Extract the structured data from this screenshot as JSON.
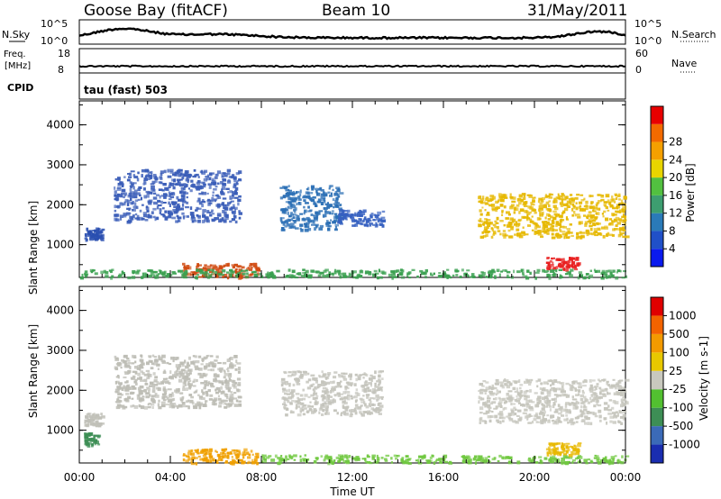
{
  "header": {
    "station": "Goose Bay (fitACF)",
    "beam": "Beam 10",
    "date": "31/May/2011"
  },
  "strip_nsky": {
    "left_label": "N.Sky",
    "ticks_left": [
      "10^5",
      "10^0"
    ],
    "right_label": "N.Search",
    "ticks_right": [
      "10^5",
      "10^0"
    ]
  },
  "strip_freq": {
    "left_label_1": "Freq.",
    "left_label_2": "[MHz]",
    "ticks_left": [
      "18",
      "8"
    ],
    "right_label": "Nave",
    "ticks_right": [
      "60",
      "0"
    ]
  },
  "cpid": {
    "label": "CPID",
    "value": "tau (fast) 503"
  },
  "chart_data": [
    {
      "type": "heatmap",
      "name": "power",
      "ylabel": "Slant Range [km]",
      "yticks": [
        1000,
        2000,
        3000,
        4000
      ],
      "ylim": [
        180,
        4600
      ],
      "xlim": [
        0,
        24
      ],
      "colorbar": {
        "label": "Power [dB]",
        "ticks": [
          "4",
          "8",
          "12",
          "16",
          "20",
          "24",
          "28"
        ],
        "colors": [
          "#0a1aee",
          "#2050c8",
          "#2a7ab8",
          "#3d9e70",
          "#52c040",
          "#e8d500",
          "#f5a000",
          "#f36a00",
          "#e80000"
        ]
      },
      "scatter_regions": [
        {
          "t0": 0.2,
          "t1": 1.0,
          "r0": 1150,
          "r1": 1450,
          "color": "#2a4fb0"
        },
        {
          "t0": 1.5,
          "t1": 7.0,
          "r0": 1600,
          "r1": 2900,
          "color": "#3a5db8"
        },
        {
          "t0": 8.8,
          "t1": 11.5,
          "r0": 1400,
          "r1": 2500,
          "color": "#2b6fb5"
        },
        {
          "t0": 11.3,
          "t1": 13.3,
          "r0": 1500,
          "r1": 1900,
          "color": "#3560c0"
        },
        {
          "t0": 17.5,
          "t1": 24.0,
          "r0": 1200,
          "r1": 2300,
          "color": "#e6b800"
        },
        {
          "t0": 20.5,
          "t1": 21.9,
          "r0": 400,
          "r1": 700,
          "color": "#e82020"
        },
        {
          "t0": 4.5,
          "t1": 7.8,
          "r0": 200,
          "r1": 550,
          "color": "#d04a10"
        },
        {
          "t0": 0.0,
          "t1": 24.0,
          "r0": 200,
          "r1": 400,
          "color": "#3aa050"
        }
      ]
    },
    {
      "type": "heatmap",
      "name": "velocity",
      "ylabel": "Slant Range [km]",
      "yticks": [
        1000,
        2000,
        3000,
        4000
      ],
      "ylim": [
        180,
        4600
      ],
      "xlim": [
        0,
        24
      ],
      "xlabel": "Time UT",
      "xticks": [
        "00:00",
        "04:00",
        "08:00",
        "12:00",
        "16:00",
        "20:00",
        "00:00"
      ],
      "colorbar": {
        "label": "Velocity [m s-1]",
        "ticks": [
          "1000",
          "500",
          "100",
          "25",
          "-25",
          "-100",
          "-500",
          "-1000"
        ],
        "colors": [
          "#1a2db0",
          "#3b6ab8",
          "#3d8e55",
          "#52c030",
          "#c8c8be",
          "#e8c800",
          "#f39a00",
          "#f36300",
          "#e00000"
        ]
      },
      "scatter_regions": [
        {
          "t0": 0.2,
          "t1": 1.0,
          "r0": 1150,
          "r1": 1450,
          "color": "#c0c0b8"
        },
        {
          "t0": 1.5,
          "t1": 7.0,
          "r0": 1600,
          "r1": 2900,
          "color": "#bdbdb5"
        },
        {
          "t0": 8.8,
          "t1": 13.3,
          "r0": 1400,
          "r1": 2500,
          "color": "#c4c4bc"
        },
        {
          "t0": 17.5,
          "t1": 24.0,
          "r0": 1200,
          "r1": 2300,
          "color": "#c6c6bd"
        },
        {
          "t0": 0.2,
          "t1": 0.8,
          "r0": 650,
          "r1": 950,
          "color": "#3d8e55"
        },
        {
          "t0": 4.5,
          "t1": 7.8,
          "r0": 200,
          "r1": 550,
          "color": "#f0a000"
        },
        {
          "t0": 8.0,
          "t1": 24.0,
          "r0": 200,
          "r1": 400,
          "color": "#70c840"
        },
        {
          "t0": 20.5,
          "t1": 21.9,
          "r0": 400,
          "r1": 700,
          "color": "#e8b800"
        }
      ]
    }
  ]
}
